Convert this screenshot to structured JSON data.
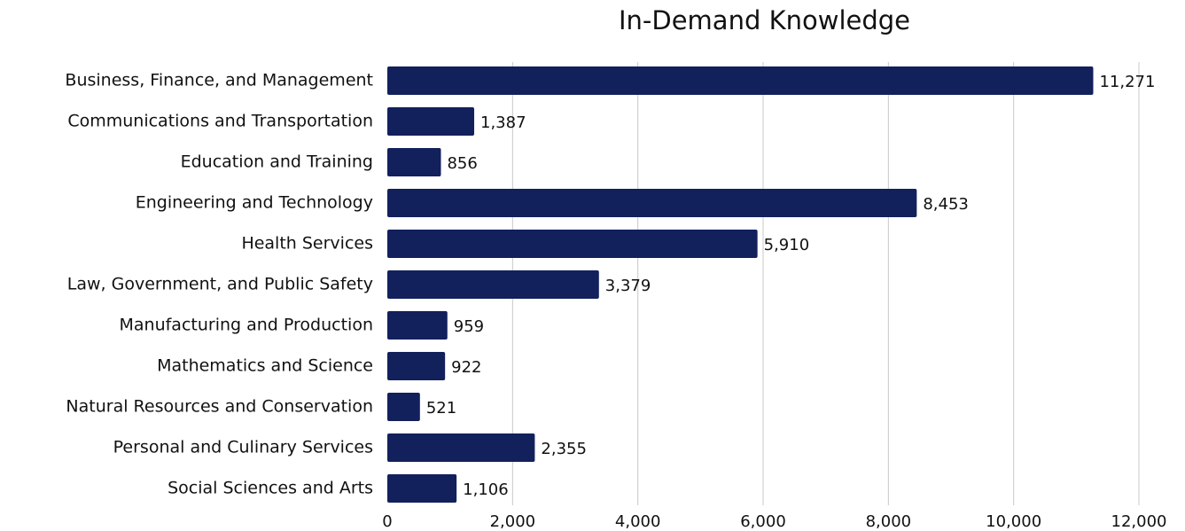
{
  "chart_data": {
    "type": "bar",
    "orientation": "horizontal",
    "title": "In-Demand Knowledge",
    "xlabel": "",
    "ylabel": "",
    "categories": [
      "Business, Finance, and Management",
      "Communications and Transportation",
      "Education and Training",
      "Engineering and Technology",
      "Health Services",
      "Law, Government, and Public Safety",
      "Manufacturing and Production",
      "Mathematics and Science",
      "Natural Resources and Conservation",
      "Personal and Culinary Services",
      "Social Sciences and Arts"
    ],
    "values": [
      11271,
      1387,
      856,
      8453,
      5910,
      3379,
      959,
      922,
      521,
      2355,
      1106
    ],
    "value_labels": [
      "11,271",
      "1,387",
      "856",
      "8,453",
      "5,910",
      "3,379",
      "959",
      "922",
      "521",
      "2,355",
      "1,106"
    ],
    "xlim": [
      0,
      12000
    ],
    "xticks": [
      0,
      2000,
      4000,
      6000,
      8000,
      10000,
      12000
    ],
    "xtick_labels": [
      "0",
      "2,000",
      "4,000",
      "6,000",
      "8,000",
      "10,000",
      "12,000"
    ],
    "grid": "vertical",
    "legend": "none",
    "bar_color": "#12205c",
    "grid_color": "#c8c8c8"
  }
}
